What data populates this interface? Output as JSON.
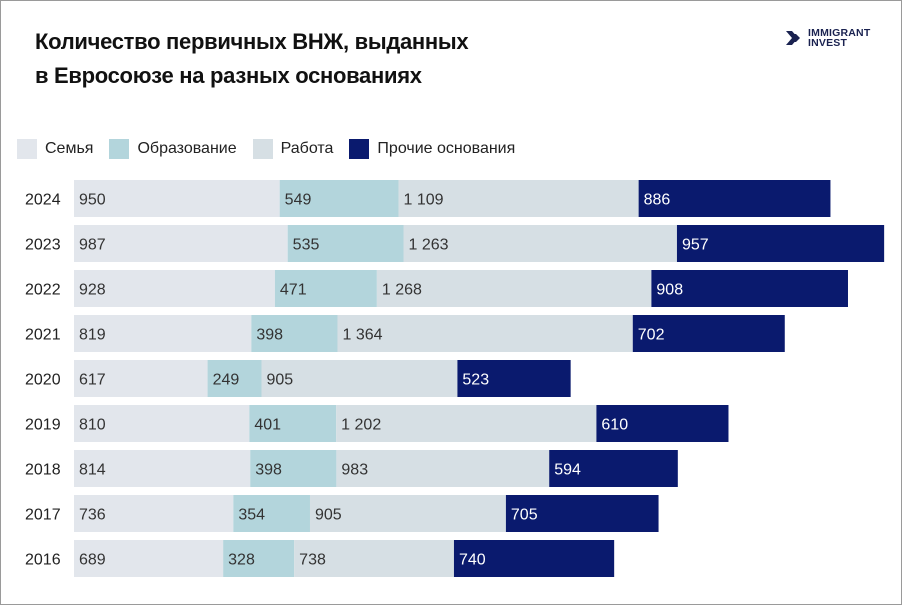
{
  "title_line1": "Количество первичных ВНЖ, выданных",
  "title_line2": "в Евросоюзе на разных основаниях",
  "logo": {
    "line1": "IMMIGRANT",
    "line2": "INVEST"
  },
  "chart_data": {
    "type": "bar",
    "orientation": "horizontal",
    "stacked": true,
    "title": "Количество первичных ВНЖ, выданных в Евросоюзе на разных основаниях",
    "legend_position": "top-left",
    "grid": false,
    "categories": [
      "2024",
      "2023",
      "2022",
      "2021",
      "2020",
      "2019",
      "2018",
      "2017",
      "2016"
    ],
    "series": [
      {
        "name": "Семья",
        "color": "#e2e6ec",
        "values": [
          950,
          987,
          928,
          819,
          617,
          810,
          814,
          736,
          689
        ],
        "labels": [
          "950",
          "987",
          "928",
          "819",
          "617",
          "810",
          "814",
          "736",
          "689"
        ]
      },
      {
        "name": "Образование",
        "color": "#b3d5dc",
        "values": [
          549,
          535,
          471,
          398,
          249,
          401,
          398,
          354,
          328
        ],
        "labels": [
          "549",
          "535",
          "471",
          "398",
          "249",
          "401",
          "398",
          "354",
          "328"
        ]
      },
      {
        "name": "Работа",
        "color": "#d6dfe4",
        "values": [
          1109,
          1263,
          1268,
          1364,
          905,
          1202,
          983,
          905,
          738
        ],
        "labels": [
          "1 109",
          "1 263",
          "1 268",
          "1 364",
          "905",
          "1 202",
          "983",
          "905",
          "738"
        ]
      },
      {
        "name": "Прочие основания",
        "color": "#0a1a6e",
        "values": [
          886,
          957,
          908,
          702,
          523,
          610,
          594,
          705,
          740
        ],
        "labels": [
          "886",
          "957",
          "908",
          "702",
          "523",
          "610",
          "594",
          "705",
          "740"
        ]
      }
    ]
  }
}
